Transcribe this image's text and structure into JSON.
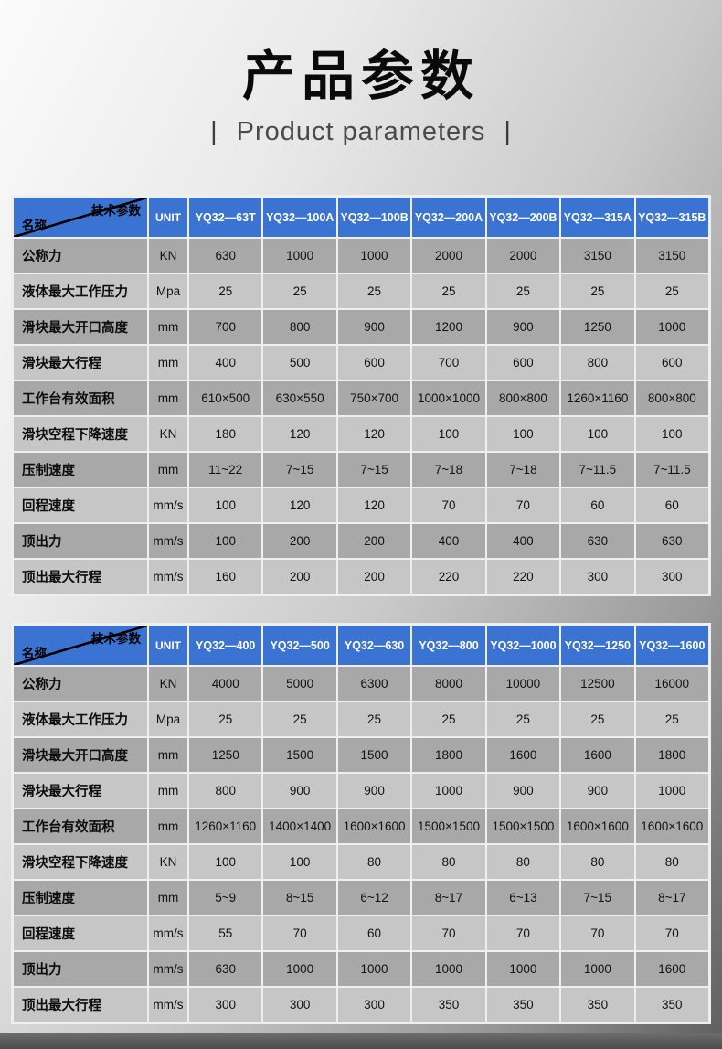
{
  "header": {
    "title": "产品参数",
    "subtitle": "Product parameters",
    "bar": "|"
  },
  "colors": {
    "header_blue": "#3a73d1",
    "row_dark": "#a8a8a8",
    "row_light": "#c6c6c6"
  },
  "tables": [
    {
      "corner": {
        "top": "技术参数",
        "bottom": "名称"
      },
      "unit_label": "UNIT",
      "models": [
        "YQ32—63T",
        "YQ32—100A",
        "YQ32—100B",
        "YQ32—200A",
        "YQ32—200B",
        "YQ32—315A",
        "YQ32—315B"
      ],
      "rows": [
        {
          "name": "公称力",
          "unit": "KN",
          "values": [
            "630",
            "1000",
            "1000",
            "2000",
            "2000",
            "3150",
            "3150"
          ]
        },
        {
          "name": "液体最大工作压力",
          "unit": "Mpa",
          "values": [
            "25",
            "25",
            "25",
            "25",
            "25",
            "25",
            "25"
          ]
        },
        {
          "name": "滑块最大开口高度",
          "unit": "mm",
          "values": [
            "700",
            "800",
            "900",
            "1200",
            "900",
            "1250",
            "1000"
          ]
        },
        {
          "name": "滑块最大行程",
          "unit": "mm",
          "values": [
            "400",
            "500",
            "600",
            "700",
            "600",
            "800",
            "600"
          ]
        },
        {
          "name": "工作台有效面积",
          "unit": "mm",
          "values": [
            "610×500",
            "630×550",
            "750×700",
            "1000×1000",
            "800×800",
            "1260×1160",
            "800×800"
          ]
        },
        {
          "name": "滑块空程下降速度",
          "unit": "KN",
          "values": [
            "180",
            "120",
            "120",
            "100",
            "100",
            "100",
            "100"
          ]
        },
        {
          "name": "压制速度",
          "unit": "mm",
          "values": [
            "11~22",
            "7~15",
            "7~15",
            "7~18",
            "7~18",
            "7~11.5",
            "7~11.5"
          ]
        },
        {
          "name": "回程速度",
          "unit": "mm/s",
          "values": [
            "100",
            "120",
            "120",
            "70",
            "70",
            "60",
            "60"
          ]
        },
        {
          "name": "顶出力",
          "unit": "mm/s",
          "values": [
            "100",
            "200",
            "200",
            "400",
            "400",
            "630",
            "630"
          ]
        },
        {
          "name": "顶出最大行程",
          "unit": "mm/s",
          "values": [
            "160",
            "200",
            "200",
            "220",
            "220",
            "300",
            "300"
          ]
        }
      ]
    },
    {
      "corner": {
        "top": "技术参数",
        "bottom": "名称"
      },
      "unit_label": "UNIT",
      "models": [
        "YQ32—400",
        "YQ32—500",
        "YQ32—630",
        "YQ32—800",
        "YQ32—1000",
        "YQ32—1250",
        "YQ32—1600"
      ],
      "rows": [
        {
          "name": "公称力",
          "unit": "KN",
          "values": [
            "4000",
            "5000",
            "6300",
            "8000",
            "10000",
            "12500",
            "16000"
          ]
        },
        {
          "name": "液体最大工作压力",
          "unit": "Mpa",
          "values": [
            "25",
            "25",
            "25",
            "25",
            "25",
            "25",
            "25"
          ]
        },
        {
          "name": "滑块最大开口高度",
          "unit": "mm",
          "values": [
            "1250",
            "1500",
            "1500",
            "1800",
            "1600",
            "1600",
            "1800"
          ]
        },
        {
          "name": "滑块最大行程",
          "unit": "mm",
          "values": [
            "800",
            "900",
            "900",
            "1000",
            "900",
            "900",
            "1000"
          ]
        },
        {
          "name": "工作台有效面积",
          "unit": "mm",
          "values": [
            "1260×1160",
            "1400×1400",
            "1600×1600",
            "1500×1500",
            "1500×1500",
            "1600×1600",
            "1600×1600"
          ]
        },
        {
          "name": "滑块空程下降速度",
          "unit": "KN",
          "values": [
            "100",
            "100",
            "80",
            "80",
            "80",
            "80",
            "80"
          ]
        },
        {
          "name": "压制速度",
          "unit": "mm",
          "values": [
            "5~9",
            "8~15",
            "6~12",
            "8~17",
            "6~13",
            "7~15",
            "8~17"
          ]
        },
        {
          "name": "回程速度",
          "unit": "mm/s",
          "values": [
            "55",
            "70",
            "60",
            "70",
            "70",
            "70",
            "70"
          ]
        },
        {
          "name": "顶出力",
          "unit": "mm/s",
          "values": [
            "630",
            "1000",
            "1000",
            "1000",
            "1000",
            "1000",
            "1600"
          ]
        },
        {
          "name": "顶出最大行程",
          "unit": "mm/s",
          "values": [
            "300",
            "300",
            "300",
            "350",
            "350",
            "350",
            "350"
          ]
        }
      ]
    }
  ]
}
